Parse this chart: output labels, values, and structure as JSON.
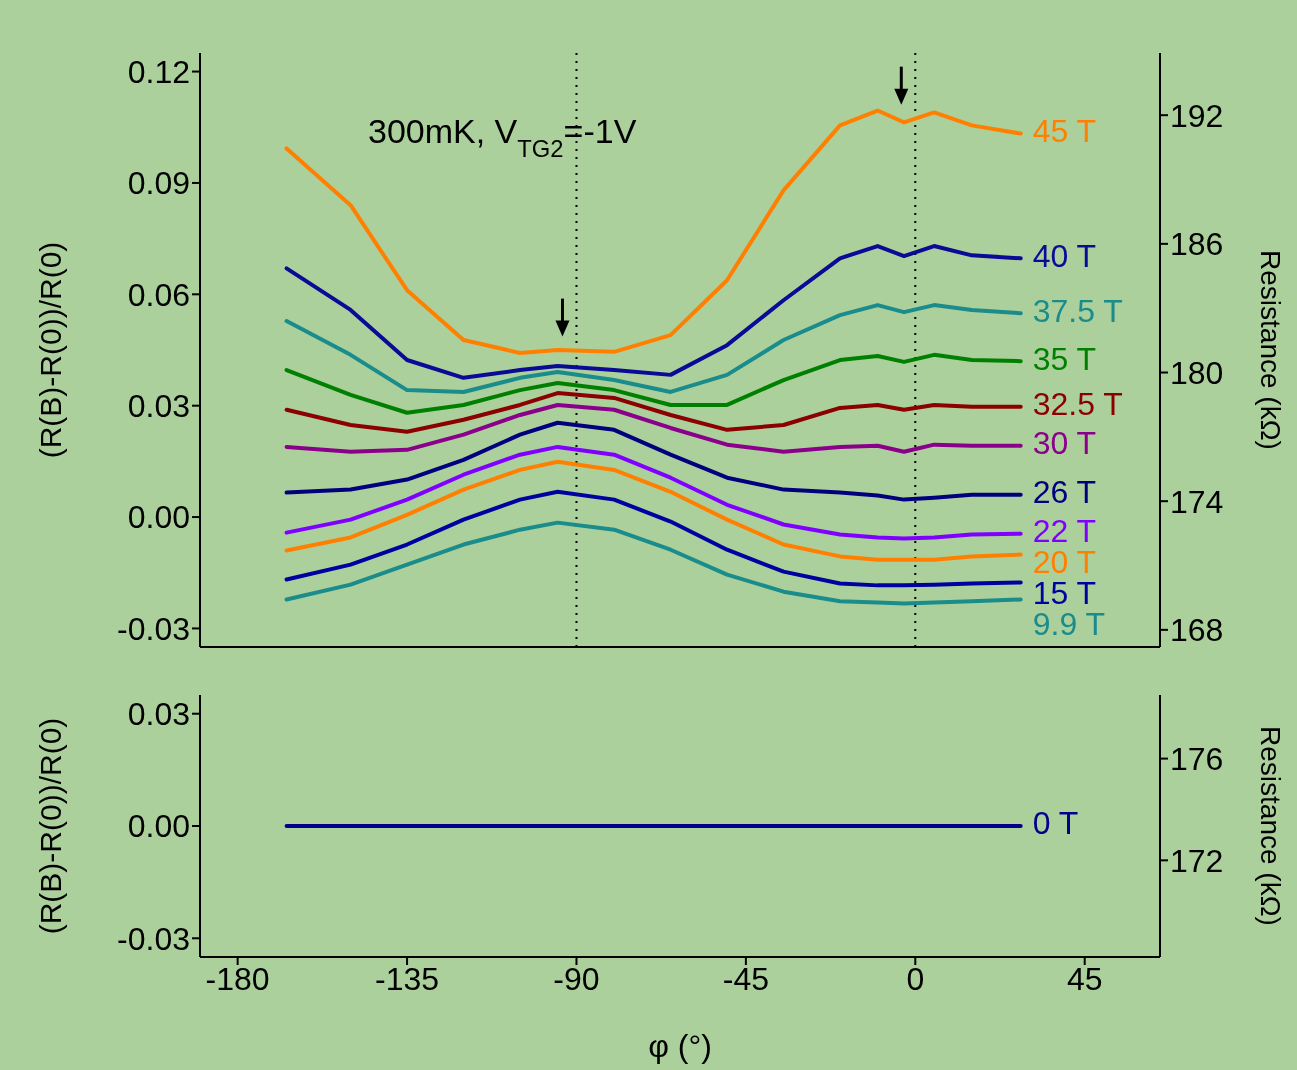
{
  "chart_data": [
    {
      "type": "line",
      "annotations": [
        "300mK, V$_{TG2}$=-1V"
      ],
      "ylabel": "(R(B)-R(0))/R(0)",
      "y2label": "Resistance (kΩ)",
      "x": [
        -167,
        -150,
        -135,
        -120,
        -105,
        -95,
        -80,
        -65,
        -50,
        -35,
        -20,
        -10,
        -3,
        5,
        15,
        28
      ],
      "xlim": [
        -190,
        65
      ],
      "xticks": [
        -180,
        -135,
        -90,
        -45,
        0,
        45
      ],
      "ylim": [
        -0.035,
        0.125
      ],
      "yticks": [
        -0.03,
        {
          "value": 0,
          "label": "0.00"
        },
        0.03,
        0.06,
        0.09,
        0.12
      ],
      "y2lim": [
        167.2,
        194.9
      ],
      "y2ticks": [
        168,
        174,
        180,
        186,
        192
      ],
      "tick_labels": "y",
      "marker": "none",
      "line_style": "solid",
      "ref_lines": [
        {
          "axis": "x",
          "value": -90,
          "color": "#000000",
          "line_style": "dotted"
        },
        {
          "axis": "x",
          "value": 0,
          "color": "#000000",
          "line_style": "dotted"
        }
      ],
      "series": [
        {
          "name": "45 T",
          "color": "#ff8000",
          "values": [
            0.0993,
            0.084,
            0.0611,
            0.0477,
            0.0442,
            0.045,
            0.0445,
            0.049,
            0.0638,
            0.088,
            0.1055,
            0.1095,
            0.1063,
            0.109,
            0.1055,
            0.1033
          ]
        },
        {
          "name": "40 T",
          "color": "#0a0a96",
          "values": [
            0.067,
            0.0558,
            0.0423,
            0.0375,
            0.0396,
            0.0407,
            0.0396,
            0.0383,
            0.0463,
            0.0584,
            0.0697,
            0.073,
            0.0703,
            0.073,
            0.0705,
            0.0697
          ]
        },
        {
          "name": "37.5 T",
          "color": "#1a8c8c",
          "values": [
            0.0528,
            0.0437,
            0.0342,
            0.0337,
            0.0375,
            0.0391,
            0.0369,
            0.0337,
            0.0383,
            0.0477,
            0.0544,
            0.0571,
            0.0552,
            0.0571,
            0.0558,
            0.0549
          ]
        },
        {
          "name": "35 T",
          "color": "#008000",
          "values": [
            0.0396,
            0.0329,
            0.0281,
            0.0302,
            0.0342,
            0.0361,
            0.0342,
            0.0302,
            0.0302,
            0.0369,
            0.0423,
            0.0434,
            0.0418,
            0.0437,
            0.0423,
            0.042
          ]
        },
        {
          "name": "32.5 T",
          "color": "#8b0000",
          "values": [
            0.0289,
            0.0248,
            0.023,
            0.0262,
            0.0302,
            0.0334,
            0.0321,
            0.0275,
            0.0235,
            0.0248,
            0.0294,
            0.0302,
            0.0289,
            0.0302,
            0.0297,
            0.0297
          ]
        },
        {
          "name": "30 T",
          "color": "#8b008b",
          "values": [
            0.0189,
            0.0176,
            0.0181,
            0.0222,
            0.0275,
            0.0302,
            0.0289,
            0.024,
            0.0195,
            0.0176,
            0.0189,
            0.0192,
            0.0176,
            0.0195,
            0.0192,
            0.0192
          ]
        },
        {
          "name": "26 T",
          "color": "#00007f",
          "values": [
            0.0066,
            0.0074,
            0.0101,
            0.0154,
            0.0222,
            0.0254,
            0.0235,
            0.0168,
            0.0106,
            0.0074,
            0.0066,
            0.0058,
            0.0047,
            0.0052,
            0.006,
            0.006
          ]
        },
        {
          "name": "22 T",
          "color": "#8000ff",
          "values": [
            -0.0042,
            -0.0007,
            0.0047,
            0.0114,
            0.0168,
            0.0189,
            0.0168,
            0.0106,
            0.0033,
            -0.002,
            -0.0047,
            -0.0055,
            -0.0058,
            -0.0055,
            -0.0047,
            -0.0045
          ]
        },
        {
          "name": "20 T",
          "color": "#ff8000",
          "values": [
            -0.009,
            -0.0055,
            0.0006,
            0.0074,
            0.0127,
            0.0149,
            0.0127,
            0.0068,
            -0.0007,
            -0.0074,
            -0.0106,
            -0.0115,
            -0.0115,
            -0.0115,
            -0.0106,
            -0.0101
          ]
        },
        {
          "name": "15 T",
          "color": "#0000a0",
          "values": [
            -0.0168,
            -0.0128,
            -0.0074,
            -0.0007,
            0.0047,
            0.0068,
            0.0047,
            -0.0012,
            -0.0088,
            -0.0147,
            -0.0179,
            -0.0184,
            -0.0184,
            -0.0182,
            -0.0179,
            -0.0176
          ]
        },
        {
          "name": "9.9 T",
          "color": "#1a8c8c",
          "values": [
            -0.0222,
            -0.0182,
            -0.0128,
            -0.0074,
            -0.0034,
            -0.0015,
            -0.0034,
            -0.0088,
            -0.0155,
            -0.0201,
            -0.0227,
            -0.023,
            -0.0233,
            -0.023,
            -0.0227,
            -0.0222
          ]
        }
      ]
    },
    {
      "type": "line",
      "xlabel": "φ (°)",
      "ylabel": "(R(B)-R(0))/R(0)",
      "y2label": "Resistance (kΩ)",
      "x": [
        -167,
        -120,
        -70,
        -20,
        28
      ],
      "xlim": [
        -190,
        65
      ],
      "xticks": [
        -180,
        -135,
        -90,
        -45,
        0,
        45
      ],
      "ylim": [
        -0.035,
        0.035
      ],
      "yticks": [
        -0.03,
        {
          "value": 0,
          "label": "0.00"
        },
        0.03
      ],
      "y2lim": [
        168.2,
        178.5
      ],
      "y2ticks": [
        172,
        176
      ],
      "marker": "none",
      "line_style": "solid",
      "series": [
        {
          "name": "0 T",
          "color": "#00008b",
          "values": [
            0,
            0,
            0,
            0,
            0
          ]
        }
      ]
    }
  ]
}
